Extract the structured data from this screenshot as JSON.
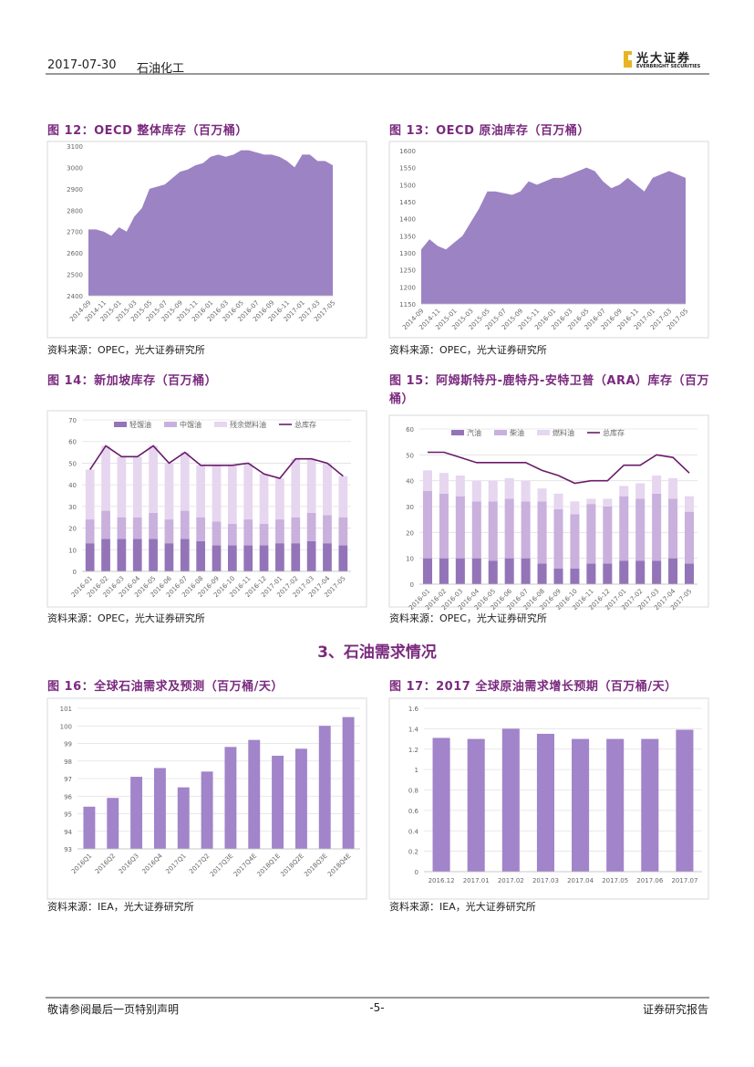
{
  "header": {
    "date": "2017-07-30",
    "industry": "石油化工",
    "logo_name": "光大证券",
    "logo_en": "EVERBRIGHT SECURITIES"
  },
  "section_title": "3、石油需求情况",
  "footer": {
    "left": "敬请参阅最后一页特别声明",
    "center": "-5-",
    "right": "证券研究报告"
  },
  "chart_data": [
    {
      "type": "area",
      "title": "图 12：OECD 整体库存（百万桶）",
      "source": "资料来源：OPEC，光大证券研究所",
      "color": "#9c83c3",
      "grid": false,
      "categories": [
        "2014-09",
        null,
        "2014-11",
        null,
        "2015-01",
        null,
        "2015-03",
        null,
        "2015-05",
        null,
        "2015-07",
        null,
        "2015-09",
        null,
        "2015-11",
        null,
        "2016-01",
        null,
        "2016-03",
        null,
        "2016-05",
        null,
        "2016-07",
        null,
        "2016-09",
        null,
        "2016-11",
        null,
        "2017-01",
        null,
        "2017-03",
        null,
        "2017-05"
      ],
      "values": [
        2710,
        2710,
        2700,
        2680,
        2720,
        2700,
        2770,
        2810,
        2900,
        2910,
        2920,
        2950,
        2980,
        2990,
        3010,
        3020,
        3050,
        3060,
        3050,
        3060,
        3080,
        3080,
        3070,
        3060,
        3060,
        3050,
        3030,
        3000,
        3060,
        3060,
        3030,
        3030,
        3010
      ],
      "ylim": [
        2400,
        3100
      ],
      "yticks": [
        2400,
        2500,
        2600,
        2700,
        2800,
        2900,
        3000,
        3100
      ]
    },
    {
      "type": "area",
      "title": "图 13：OECD 原油库存（百万桶）",
      "source": "资料来源：OPEC，光大证券研究所",
      "color": "#9c83c3",
      "grid": false,
      "categories": [
        "2014-09",
        null,
        "2014-11",
        null,
        "2015-01",
        null,
        "2015-03",
        null,
        "2015-05",
        null,
        "2015-07",
        null,
        "2015-09",
        null,
        "2015-11",
        null,
        "2016-01",
        null,
        "2016-03",
        null,
        "2016-05",
        null,
        "2016-07",
        null,
        "2016-09",
        null,
        "2016-11",
        null,
        "2017-01",
        null,
        "2017-03",
        null,
        "2017-05"
      ],
      "values": [
        1310,
        1340,
        1320,
        1310,
        1330,
        1350,
        1390,
        1430,
        1480,
        1480,
        1475,
        1470,
        1480,
        1510,
        1500,
        1510,
        1520,
        1520,
        1530,
        1540,
        1550,
        1540,
        1510,
        1490,
        1500,
        1520,
        1500,
        1480,
        1520,
        1530,
        1540,
        1530,
        1520
      ],
      "ylim": [
        1150,
        1600
      ],
      "yticks": [
        1150,
        1200,
        1250,
        1300,
        1350,
        1400,
        1450,
        1500,
        1550,
        1600
      ]
    },
    {
      "type": "stacked_bar",
      "title": "图 14：新加坡库存（百万桶）",
      "source": "资料来源：OPEC，光大证券研究所",
      "grid": true,
      "legend": "top",
      "categories": [
        "2016-01",
        "2016-02",
        "2016-03",
        "2016-04",
        "2016-05",
        "2016-06",
        "2016-07",
        "2016-08",
        "2016-09",
        "2016-10",
        "2016-11",
        "2016-12",
        "2017-01",
        "2017-02",
        "2017-03",
        "2017-04",
        "2017-05"
      ],
      "series": [
        {
          "name": "轻馏油",
          "color": "#9474b8",
          "values": [
            13,
            15,
            15,
            15,
            15,
            13,
            15,
            14,
            12,
            12,
            12,
            12,
            13,
            13,
            14,
            13,
            12
          ]
        },
        {
          "name": "中馏油",
          "color": "#c9b0dd",
          "values": [
            11,
            13,
            10,
            10,
            12,
            11,
            13,
            11,
            11,
            10,
            12,
            10,
            11,
            12,
            13,
            13,
            13
          ]
        },
        {
          "name": "残余燃料油",
          "color": "#e6d6ef",
          "values": [
            23,
            30,
            28,
            28,
            31,
            26,
            27,
            24,
            26,
            27,
            26,
            23,
            19,
            27,
            25,
            24,
            19
          ]
        },
        {
          "name": "总库存",
          "color": "#6a1b6a",
          "type": "line",
          "values": [
            47,
            58,
            53,
            53,
            58,
            50,
            55,
            49,
            49,
            49,
            50,
            45,
            43,
            52,
            52,
            50,
            44
          ]
        }
      ],
      "ylim": [
        0,
        70
      ],
      "yticks": [
        0,
        10,
        20,
        30,
        40,
        50,
        60,
        70
      ]
    },
    {
      "type": "stacked_bar",
      "title": "图 15：阿姆斯特丹-鹿特丹-安特卫普（ARA）库存（百万桶）",
      "source": "资料来源：OPEC，光大证券研究所",
      "grid": true,
      "legend": "top",
      "categories": [
        "2016-01",
        "2016-02",
        "2016-03",
        "2016-04",
        "2016-05",
        "2016-06",
        "2016-07",
        "2016-08",
        "2016-09",
        "2016-10",
        "2016-11",
        "2016-12",
        "2017-01",
        "2017-02",
        "2017-03",
        "2017-04",
        "2017-05"
      ],
      "series": [
        {
          "name": "汽油",
          "color": "#9474b8",
          "values": [
            10,
            10,
            10,
            10,
            9,
            10,
            10,
            8,
            6,
            6,
            8,
            8,
            9,
            9,
            9,
            10,
            8
          ]
        },
        {
          "name": "柴油",
          "color": "#c9b0dd",
          "values": [
            26,
            25,
            24,
            22,
            23,
            23,
            22,
            24,
            23,
            21,
            23,
            22,
            25,
            24,
            26,
            23,
            20
          ]
        },
        {
          "name": "燃料油",
          "color": "#e6d6ef",
          "values": [
            8,
            8,
            8,
            8,
            8,
            8,
            8,
            5,
            6,
            5,
            2,
            3,
            4,
            6,
            7,
            8,
            6
          ]
        },
        {
          "name": "总库存",
          "color": "#6a1b6a",
          "type": "line",
          "values": [
            51,
            51,
            49,
            47,
            47,
            47,
            47,
            44,
            42,
            39,
            40,
            40,
            46,
            46,
            50,
            49,
            43
          ]
        }
      ],
      "ylim": [
        0,
        60
      ],
      "yticks": [
        0,
        10,
        20,
        30,
        40,
        50,
        60
      ]
    },
    {
      "type": "bar",
      "title": "图 16：全球石油需求及预测（百万桶/天）",
      "source": "资料来源：IEA，光大证券研究所",
      "color": "#a184c9",
      "grid": true,
      "categories": [
        "2016Q1",
        "2016Q2",
        "2016Q3",
        "2016Q4",
        "2017Q1",
        "2017Q2",
        "2017Q3E",
        "2017Q4E",
        "2018Q1E",
        "2018Q2E",
        "2018Q3E",
        "2018Q4E"
      ],
      "values": [
        95.4,
        95.9,
        97.1,
        97.6,
        96.5,
        97.4,
        98.8,
        99.2,
        98.3,
        98.7,
        100.0,
        100.5
      ],
      "ylim": [
        93,
        101
      ],
      "yticks": [
        93,
        94,
        95,
        96,
        97,
        98,
        99,
        100,
        101
      ]
    },
    {
      "type": "bar",
      "title": "图 17：2017 全球原油需求增长预期（百万桶/天）",
      "source": "资料来源：IEA，光大证券研究所",
      "color": "#a184c9",
      "grid": true,
      "categories": [
        "2016.12",
        "2017.01",
        "2017.02",
        "2017.03",
        "2017.04",
        "2017.05",
        "2017.06",
        "2017.07"
      ],
      "values": [
        1.31,
        1.3,
        1.4,
        1.35,
        1.3,
        1.3,
        1.3,
        1.39
      ],
      "ylim": [
        0,
        1.6
      ],
      "yticks": [
        0,
        0.2,
        0.4,
        0.6,
        0.8,
        1,
        1.2,
        1.4,
        1.6
      ]
    }
  ]
}
